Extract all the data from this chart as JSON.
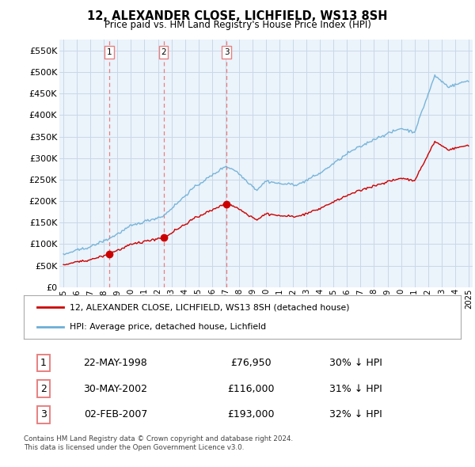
{
  "title": "12, ALEXANDER CLOSE, LICHFIELD, WS13 8SH",
  "subtitle": "Price paid vs. HM Land Registry's House Price Index (HPI)",
  "legend_line1": "12, ALEXANDER CLOSE, LICHFIELD, WS13 8SH (detached house)",
  "legend_line2": "HPI: Average price, detached house, Lichfield",
  "footer1": "Contains HM Land Registry data © Crown copyright and database right 2024.",
  "footer2": "This data is licensed under the Open Government Licence v3.0.",
  "transactions": [
    {
      "num": 1,
      "date": "22-MAY-1998",
      "price": 76950,
      "pct": "30%",
      "dir": "↓",
      "x": 1998.38
    },
    {
      "num": 2,
      "date": "30-MAY-2002",
      "price": 116000,
      "pct": "31%",
      "dir": "↓",
      "x": 2002.41
    },
    {
      "num": 3,
      "date": "02-FEB-2007",
      "price": 193000,
      "pct": "32%",
      "dir": "↓",
      "x": 2007.09
    }
  ],
  "hpi_color": "#6BAED6",
  "price_color": "#CC0000",
  "vline_color": "#E88080",
  "grid_color": "#C8D8E8",
  "chart_bg": "#EBF3FB",
  "bg_color": "#FFFFFF",
  "ylim": [
    0,
    575000
  ],
  "xlim": [
    1994.7,
    2025.3
  ],
  "yticks": [
    0,
    50000,
    100000,
    150000,
    200000,
    250000,
    300000,
    350000,
    400000,
    450000,
    500000,
    550000
  ],
  "xticks": [
    1995,
    1996,
    1997,
    1998,
    1999,
    2000,
    2001,
    2002,
    2003,
    2004,
    2005,
    2006,
    2007,
    2008,
    2009,
    2010,
    2011,
    2012,
    2013,
    2014,
    2015,
    2016,
    2017,
    2018,
    2019,
    2020,
    2021,
    2022,
    2023,
    2024,
    2025
  ]
}
